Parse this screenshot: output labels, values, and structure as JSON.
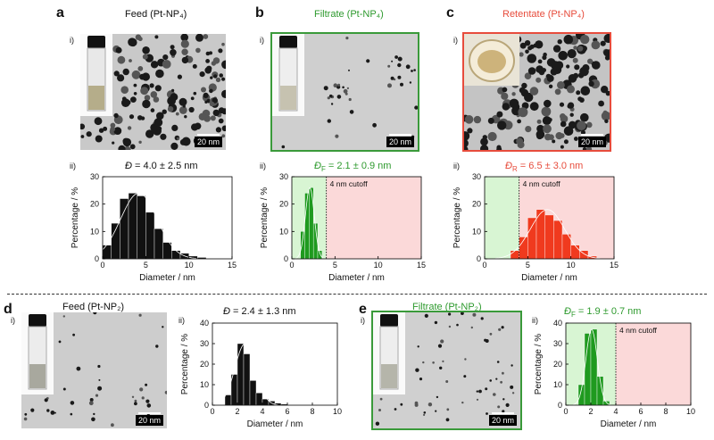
{
  "panels": {
    "a": {
      "letter": "a",
      "title": "Feed (Pt-NP₄)",
      "title_color": "#111111",
      "sub_i": "i)",
      "sub_ii": "ii)",
      "scale": "20 nm",
      "stat": "Đ = 4.0 ± 2.5 nm",
      "stat_color": "#111111"
    },
    "b": {
      "letter": "b",
      "title": "Filtrate (Pt-NP₄)",
      "title_color": "#2e9a2e",
      "sub_i": "i)",
      "sub_ii": "ii)",
      "scale": "20 nm",
      "stat": "Đ_F = 2.1 ± 0.9 nm",
      "stat_color": "#2e9a2e"
    },
    "c": {
      "letter": "c",
      "title": "Retentate (Pt-NP₄)",
      "title_color": "#e74c3c",
      "sub_i": "i)",
      "sub_ii": "ii)",
      "scale": "20 nm",
      "stat": "Đ_R = 6.5 ± 3.0 nm",
      "stat_color": "#e74c3c"
    },
    "d": {
      "letter": "d",
      "title": "Feed (Pt-NP₂)",
      "title_color": "#111111",
      "sub_i": "i)",
      "sub_ii": "ii)",
      "scale": "20 nm",
      "stat": "Đ = 2.4 ± 1.3 nm",
      "stat_color": "#111111"
    },
    "e": {
      "letter": "e",
      "title": "Filtrate (Pt-NP₂)",
      "title_color": "#2e9a2e",
      "sub_i": "i)",
      "sub_ii": "ii)",
      "scale": "20 nm",
      "stat": "Đ_F = 1.9 ± 0.7 nm",
      "stat_color": "#2e9a2e"
    }
  },
  "colors": {
    "black": "#111111",
    "green": "#1f9a1f",
    "red": "#f03a1e",
    "green_shade": "#d8f5d3",
    "red_shade": "#fbd9d9",
    "green_border": "#3a9a3a",
    "red_border": "#e74c3c"
  },
  "chart_data": [
    {
      "id": "a",
      "type": "bar",
      "bin_width": 1,
      "xlabel": "Diameter / nm",
      "ylabel": "Percentage / %",
      "xlim": [
        0,
        15
      ],
      "ylim": [
        0,
        30
      ],
      "xticks": [
        0,
        5,
        10,
        15
      ],
      "yticks": [
        0,
        10,
        20,
        30
      ],
      "x": [
        0.5,
        1.5,
        2.5,
        3.5,
        4.5,
        5.5,
        6.5,
        7.5,
        8.5,
        9.5,
        10.5,
        11.5
      ],
      "values": [
        5,
        13,
        22,
        24,
        23,
        17,
        11,
        6,
        3,
        2,
        1,
        0.5
      ],
      "bar_color": "#111111",
      "fit": true,
      "shade": null
    },
    {
      "id": "b",
      "type": "bar",
      "bin_width": 0.5,
      "xlabel": "Diameter / nm",
      "ylabel": "Percentage / %",
      "xlim": [
        0,
        15
      ],
      "ylim": [
        0,
        30
      ],
      "xticks": [
        0,
        5,
        10,
        15
      ],
      "yticks": [
        0,
        10,
        20,
        30
      ],
      "x": [
        1.25,
        1.75,
        2.25,
        2.75,
        3.25
      ],
      "values": [
        10,
        24,
        26,
        13,
        3
      ],
      "bar_color": "#1f9a1f",
      "fit": true,
      "shade": {
        "cutoff": 4,
        "cutoff_label": "4 nm cutoff",
        "left": "#d8f5d3",
        "right": "#fbd9d9"
      }
    },
    {
      "id": "c",
      "type": "bar",
      "bin_width": 1,
      "xlabel": "Diameter / nm",
      "ylabel": "Percentage / %",
      "xlim": [
        0,
        15
      ],
      "ylim": [
        0,
        30
      ],
      "xticks": [
        0,
        5,
        10,
        15
      ],
      "yticks": [
        0,
        10,
        20,
        30
      ],
      "x": [
        3.5,
        4.5,
        5.5,
        6.5,
        7.5,
        8.5,
        9.5,
        10.5,
        11.5,
        12.5
      ],
      "values": [
        3,
        8,
        15,
        18,
        16,
        14,
        9,
        5,
        3,
        1
      ],
      "bar_color": "#f03a1e",
      "fit": true,
      "shade": {
        "cutoff": 4,
        "cutoff_label": "4 nm cutoff",
        "left": "#d8f5d3",
        "right": "#fbd9d9"
      }
    },
    {
      "id": "d",
      "type": "bar",
      "bin_width": 0.5,
      "xlabel": "Diameter / nm",
      "ylabel": "Percentage / %",
      "xlim": [
        0,
        10
      ],
      "ylim": [
        0,
        40
      ],
      "xticks": [
        0,
        2,
        4,
        6,
        8,
        10
      ],
      "yticks": [
        0,
        10,
        20,
        30,
        40
      ],
      "x": [
        1.25,
        1.75,
        2.25,
        2.75,
        3.25,
        3.75,
        4.25,
        4.75,
        5.25,
        5.75
      ],
      "values": [
        5,
        15,
        30,
        25,
        12,
        6,
        3,
        2,
        1,
        0.5
      ],
      "bar_color": "#111111",
      "fit": true,
      "shade": null
    },
    {
      "id": "e",
      "type": "bar",
      "bin_width": 0.5,
      "xlabel": "Diameter / nm",
      "ylabel": "Percentage / %",
      "xlim": [
        0,
        10
      ],
      "ylim": [
        0,
        40
      ],
      "xticks": [
        0,
        2,
        4,
        6,
        8,
        10
      ],
      "yticks": [
        0,
        10,
        20,
        30,
        40
      ],
      "x": [
        1.25,
        1.75,
        2.25,
        2.75,
        3.25
      ],
      "values": [
        10,
        35,
        37,
        14,
        2
      ],
      "bar_color": "#1f9a1f",
      "fit": true,
      "shade": {
        "cutoff": 4,
        "cutoff_label": "4 nm cutoff",
        "left": "#d8f5d3",
        "right": "#fbd9d9"
      }
    }
  ]
}
